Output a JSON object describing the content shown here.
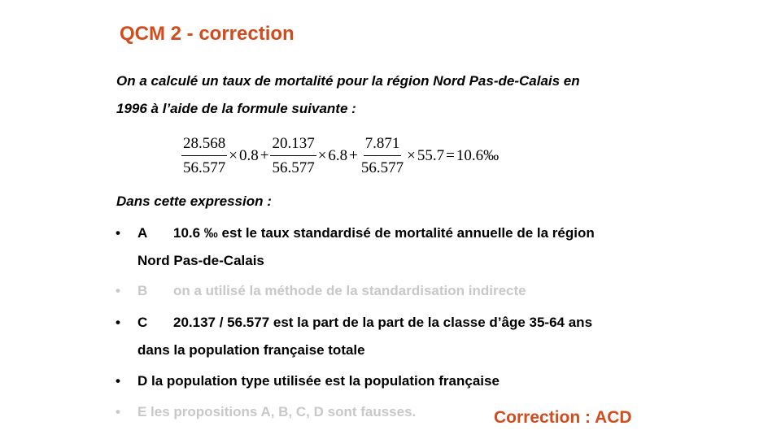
{
  "title": "QCM 2 - correction",
  "intro": {
    "line1": "On a calculé un taux de mortalité pour la région Nord Pas-de-Calais en",
    "line2": "1996 à l’aide de la formule suivante :",
    "line3": "Dans cette expression :"
  },
  "formula": {
    "t1_num": "28.568",
    "t1_den": "56.577",
    "t1_rate": "0.8",
    "t2_num": "20.137",
    "t2_den": "56.577",
    "t2_rate": "6.8",
    "t3_num": "7.871",
    "t3_den": "56.577",
    "t3_rate": "55.7",
    "result": "10.6‰",
    "times": "×",
    "plus": "+",
    "equals": "="
  },
  "bullets": [
    {
      "marker": "•",
      "letter": "A",
      "text": "10.6 ‰ est le taux standardisé de mortalité annuelle de la région",
      "cont": "Nord Pas-de-Calais",
      "greyed": false
    },
    {
      "marker": "•",
      "letter": "B",
      "text": "on a utilisé la méthode de la standardisation indirecte",
      "greyed": true
    },
    {
      "marker": "•",
      "letter": "C",
      "text": "20.137 / 56.577 est la part de la part de la classe d’âge 35-64 ans",
      "cont": "dans la population française totale",
      "greyed": false
    },
    {
      "marker": "•",
      "text": "D la population type utilisée est la population française",
      "greyed": false
    },
    {
      "marker": "•",
      "text": "E les propositions A, B, C, D sont fausses.",
      "greyed": true
    }
  ],
  "correction": "Correction : ACD",
  "colors": {
    "accent": "#d24b1c",
    "greyed_text": "#c8c8c8",
    "text": "#000000"
  }
}
